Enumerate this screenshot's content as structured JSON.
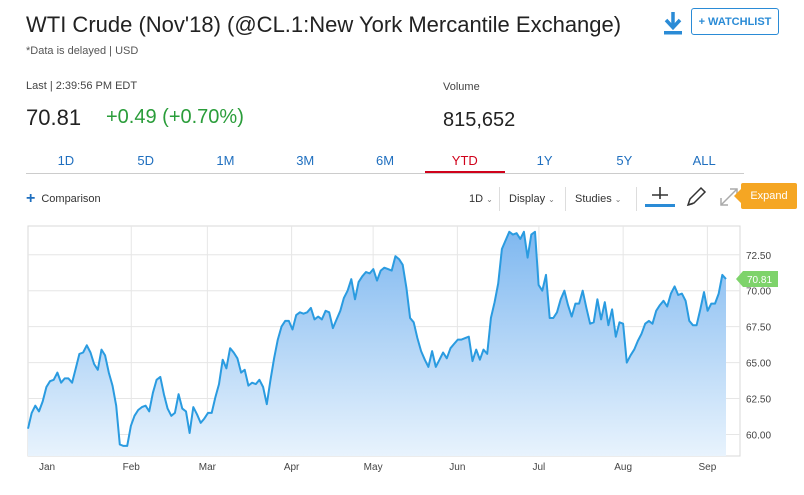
{
  "header": {
    "title": "WTI Crude (Nov'18) (@CL.1:New York Mercantile Exchange)",
    "delay_note": "*Data is delayed | USD",
    "watchlist_label": "+ WATCHLIST",
    "download_icon": "download-icon"
  },
  "quote": {
    "last_label": "Last | 2:39:56 PM EDT",
    "price": "70.81",
    "change": "+0.49 (+0.70%)",
    "volume_label": "Volume",
    "volume": "815,652",
    "change_color": "#2a9d3a"
  },
  "range_tabs": [
    {
      "label": "1D"
    },
    {
      "label": "5D"
    },
    {
      "label": "1M"
    },
    {
      "label": "3M"
    },
    {
      "label": "6M"
    },
    {
      "label": "YTD",
      "active": true
    },
    {
      "label": "1Y"
    },
    {
      "label": "5Y"
    },
    {
      "label": "ALL"
    }
  ],
  "toolbar": {
    "comparison": "Comparison",
    "interval": "1D",
    "display": "Display",
    "studies": "Studies",
    "expand": "Expand",
    "crosshair_icon": "crosshair-icon",
    "draw_icon": "pencil-icon",
    "fullscreen_icon": "fullscreen-icon"
  },
  "chart_data": {
    "type": "area",
    "series": [
      {
        "values": [
          60.4,
          61.5,
          62.0,
          61.6,
          62.3,
          63.3,
          63.7,
          63.8,
          64.3,
          63.6,
          63.9,
          63.9,
          63.6,
          64.6,
          65.6,
          65.7,
          66.2,
          65.7,
          64.9,
          64.5,
          65.9,
          65.5,
          64.3,
          63.4,
          62.0,
          59.3,
          59.2,
          59.2,
          60.6,
          61.3,
          61.7,
          61.9,
          62.0,
          61.6,
          62.9,
          63.8,
          64.0,
          62.8,
          61.8,
          61.3,
          61.5,
          62.8,
          61.8,
          61.6,
          60.1,
          61.9,
          61.4,
          60.8,
          61.1,
          61.5,
          61.5,
          62.6,
          63.5,
          65.2,
          64.6,
          66.0,
          65.7,
          65.3,
          64.3,
          64.5,
          63.4,
          63.6,
          63.5,
          63.8,
          63.3,
          62.1,
          63.8,
          65.3,
          66.6,
          67.5,
          67.9,
          67.9,
          67.3,
          68.3,
          68.5,
          68.4,
          68.5,
          68.8,
          68.0,
          68.2,
          68.0,
          68.6,
          68.5,
          67.4,
          68.0,
          68.6,
          69.5,
          70.0,
          70.8,
          69.4,
          70.6,
          71.0,
          71.3,
          71.2,
          71.5,
          70.7,
          71.4,
          71.6,
          71.5,
          71.4,
          72.4,
          72.2,
          71.8,
          70.2,
          68.1,
          67.8,
          66.7,
          65.8,
          65.2,
          64.7,
          65.8,
          64.7,
          65.2,
          65.7,
          65.3,
          66.0,
          66.3,
          66.6,
          66.6,
          66.7,
          66.8,
          65.1,
          65.9,
          65.2,
          65.9,
          65.6,
          68.1,
          69.2,
          70.5,
          72.9,
          73.5,
          74.1,
          73.9,
          74.0,
          73.6,
          74.1,
          72.3,
          73.9,
          74.1,
          70.4,
          70.0,
          71.1,
          68.1,
          68.1,
          68.5,
          69.4,
          70.0,
          69.0,
          68.2,
          69.1,
          69.1,
          70.0,
          68.8,
          67.7,
          67.8,
          69.4,
          68.0,
          69.2,
          67.6,
          68.7,
          66.8,
          67.8,
          67.7,
          65.0,
          65.5,
          65.9,
          66.5,
          67.0,
          67.7,
          67.9,
          67.7,
          68.6,
          69.0,
          69.3,
          68.9,
          69.8,
          70.3,
          69.7,
          69.8,
          69.3,
          67.9,
          67.6,
          67.6,
          68.7,
          69.9,
          68.6,
          69.1,
          69.1,
          69.8,
          71.1,
          70.81
        ]
      }
    ],
    "x_start": "2018-01-01",
    "x_end": "2018-09-20",
    "month_labels": [
      "Jan",
      "Feb",
      "Mar",
      "Apr",
      "May",
      "Jun",
      "Jul",
      "Aug",
      "Sep"
    ],
    "ylim": [
      58.5,
      74.5
    ],
    "y_ticks": [
      60.0,
      62.5,
      65.0,
      67.5,
      70.0,
      72.5
    ],
    "y_tick_labels": [
      "60.00",
      "62.50",
      "65.00",
      "67.50",
      "70.00",
      "72.50"
    ],
    "last_label": "70.81",
    "grid": true,
    "colors": {
      "line": "#2a9be0",
      "fill_top": "#7fb8f0",
      "fill_bottom": "#e8f3fd",
      "last_badge": "#7ed36b"
    }
  }
}
